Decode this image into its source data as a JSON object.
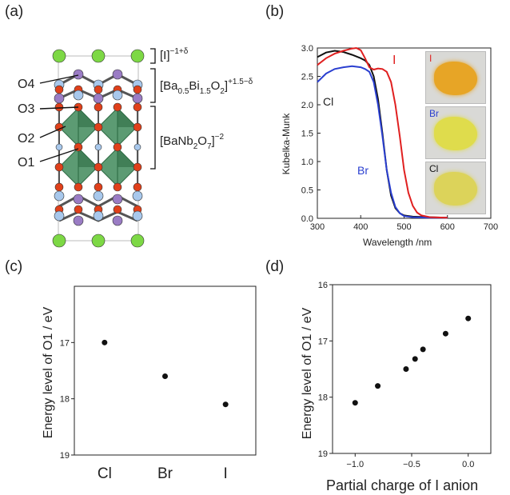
{
  "panels": {
    "a": "(a)",
    "b": "(b)",
    "c": "(c)",
    "d": "(d)"
  },
  "structure": {
    "labels": {
      "halide": "[I]",
      "halide_sup": "−1+δ",
      "bb_main": "[Ba",
      "bb_s1": "0.5",
      "bb_m2": "Bi",
      "bb_s2": "1.5",
      "bb_m3": "O",
      "bb_s3": "2",
      "bb_m4": "]",
      "bb_sup": "+1.5−δ",
      "pv_main": "[BaNb",
      "pv_s1": "2",
      "pv_m2": "O",
      "pv_s2": "7",
      "pv_m3": "]",
      "pv_sup": "−2",
      "o4": "O4",
      "o3": "O3",
      "o2": "O2",
      "o1": "O1"
    },
    "colors": {
      "I": "#7dd845",
      "Bi": "#9a7cc4",
      "O": "#e0401a",
      "Ba": "#a8c8ec",
      "octahedra": "#3f8a5a"
    }
  },
  "chart_data": [
    {
      "type": "line",
      "xlabel": "Wavelength /nm",
      "ylabel": "Kubelka-Munk",
      "xlim": [
        300,
        700
      ],
      "ylim": [
        0,
        3.0
      ],
      "xticks": [
        "300",
        "400",
        "500",
        "600",
        "700"
      ],
      "yticks": [
        "0.0",
        "0.5",
        "1.0",
        "1.5",
        "2.0",
        "2.5",
        "3.0"
      ],
      "series": [
        {
          "name": "Cl",
          "color": "#111111",
          "points": [
            [
              300,
              2.84
            ],
            [
              320,
              2.92
            ],
            [
              340,
              2.95
            ],
            [
              360,
              2.93
            ],
            [
              380,
              2.88
            ],
            [
              400,
              2.82
            ],
            [
              410,
              2.78
            ],
            [
              420,
              2.7
            ],
            [
              430,
              2.5
            ],
            [
              440,
              2.1
            ],
            [
              450,
              1.5
            ],
            [
              460,
              0.85
            ],
            [
              470,
              0.4
            ],
            [
              480,
              0.18
            ],
            [
              490,
              0.09
            ],
            [
              500,
              0.05
            ],
            [
              520,
              0.03
            ],
            [
              560,
              0.02
            ],
            [
              600,
              0.01
            ]
          ]
        },
        {
          "name": "Br",
          "color": "#2a3fd0",
          "points": [
            [
              300,
              2.4
            ],
            [
              320,
              2.55
            ],
            [
              340,
              2.63
            ],
            [
              360,
              2.66
            ],
            [
              380,
              2.68
            ],
            [
              400,
              2.66
            ],
            [
              410,
              2.63
            ],
            [
              420,
              2.58
            ],
            [
              430,
              2.4
            ],
            [
              440,
              2.0
            ],
            [
              450,
              1.45
            ],
            [
              460,
              0.85
            ],
            [
              470,
              0.45
            ],
            [
              480,
              0.2
            ],
            [
              490,
              0.09
            ],
            [
              500,
              0.04
            ],
            [
              520,
              0.02
            ],
            [
              560,
              0.01
            ],
            [
              600,
              0.01
            ]
          ]
        },
        {
          "name": "I",
          "color": "#e02020",
          "points": [
            [
              300,
              2.7
            ],
            [
              320,
              2.82
            ],
            [
              340,
              2.9
            ],
            [
              360,
              2.95
            ],
            [
              380,
              2.99
            ],
            [
              390,
              3.0
            ],
            [
              400,
              2.96
            ],
            [
              410,
              2.82
            ],
            [
              420,
              2.66
            ],
            [
              430,
              2.62
            ],
            [
              440,
              2.64
            ],
            [
              450,
              2.63
            ],
            [
              460,
              2.58
            ],
            [
              470,
              2.4
            ],
            [
              480,
              2.0
            ],
            [
              490,
              1.45
            ],
            [
              500,
              0.85
            ],
            [
              510,
              0.45
            ],
            [
              520,
              0.22
            ],
            [
              530,
              0.1
            ],
            [
              540,
              0.05
            ],
            [
              560,
              0.02
            ],
            [
              600,
              0.01
            ]
          ]
        }
      ],
      "labels": {
        "cl": "Cl",
        "br": "Br",
        "i": "I"
      },
      "photos": [
        {
          "label": "I",
          "label_color": "#e02020",
          "color": "#e7a526"
        },
        {
          "label": "Br",
          "label_color": "#2a3fd0",
          "color": "#dfdc4c"
        },
        {
          "label": "Cl",
          "label_color": "#111111",
          "color": "#dcd35a"
        }
      ]
    },
    {
      "type": "scatter",
      "ylabel": "Energy level of O1 / eV",
      "xlabel": "",
      "categories": [
        "Cl",
        "Br",
        "I"
      ],
      "values": [
        17.0,
        17.6,
        18.1
      ],
      "ylim": [
        16,
        19
      ],
      "y_inverted": true,
      "yticks": [
        "17",
        "18",
        "19"
      ]
    },
    {
      "type": "scatter",
      "ylabel": "Energy level of O1 / eV",
      "xlabel": "Partial charge of I anion",
      "xlim": [
        -1.2,
        0.2
      ],
      "ylim": [
        16,
        19
      ],
      "y_inverted": true,
      "xticks": [
        "−1.0",
        "−0.5",
        "0.0"
      ],
      "yticks": [
        "16",
        "17",
        "18",
        "19"
      ],
      "points": [
        [
          -1.0,
          18.1
        ],
        [
          -0.8,
          17.8
        ],
        [
          -0.55,
          17.5
        ],
        [
          -0.47,
          17.32
        ],
        [
          -0.4,
          17.15
        ],
        [
          -0.2,
          16.87
        ],
        [
          0.0,
          16.6
        ]
      ]
    }
  ]
}
